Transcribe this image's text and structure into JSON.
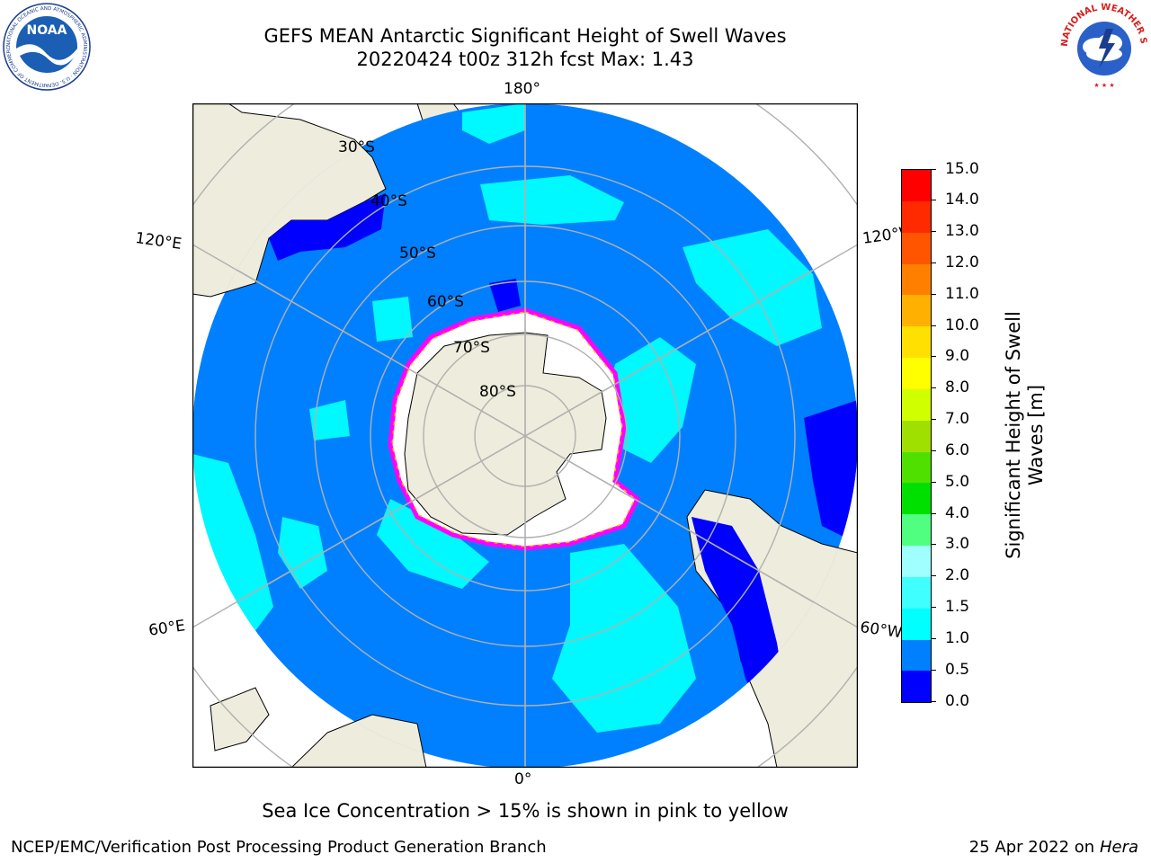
{
  "header": {
    "title_line1": "GEFS MEAN Antarctic Significant Height of Swell Waves",
    "title_line2": "20220424 t00z 312h fcst   Max: 1.43"
  },
  "logos": {
    "noaa_text": "NOAA",
    "noaa_ring_text": "NATIONAL OCEANIC AND ATMOSPHERIC ADMINISTRATION · U.S. DEPARTMENT OF COMMERCE",
    "nws_ring_text": "NATIONAL WEATHER SERVICE"
  },
  "map": {
    "projection": "south-polar-stereographic",
    "latitude_labels": [
      "30°S",
      "40°S",
      "50°S",
      "60°S",
      "70°S",
      "80°S"
    ],
    "longitude_labels": {
      "top": "180°",
      "bottom": "0°",
      "upper_left": "120°E",
      "lower_left": "60°E",
      "upper_right": "120°W",
      "lower_right": "60°W"
    },
    "colors": {
      "land": "#eeecdc",
      "ice_region": "#ffffff",
      "ocean_dominant": "#0080ff",
      "swell_1_5": "#00ffff",
      "swell_0_5": "#0000ff",
      "sea_ice_edge": [
        "#ff00ff",
        "#ffb000"
      ],
      "grid": "#b0b0b0"
    }
  },
  "colorbar": {
    "label": "Significant Height of Swell Waves [m]",
    "label_line1": "Significant Height of Swell",
    "label_line2": "Waves [m]",
    "range": [
      0.0,
      15.0
    ],
    "ticks": [
      "0.0",
      "0.5",
      "1.0",
      "1.5",
      "2.0",
      "3.0",
      "4.0",
      "5.0",
      "6.0",
      "7.0",
      "8.0",
      "9.0",
      "10.0",
      "11.0",
      "12.0",
      "13.0",
      "14.0",
      "15.0"
    ],
    "colors": [
      "#0000ff",
      "#0080ff",
      "#00ffff",
      "#40ffff",
      "#a0ffff",
      "#50ff80",
      "#00e000",
      "#50e000",
      "#a0e000",
      "#d0ff00",
      "#ffff00",
      "#ffe000",
      "#ffb000",
      "#ff8000",
      "#ff5500",
      "#ff2a00",
      "#ff0000"
    ]
  },
  "caption": "Sea Ice Concentration > 15% is shown in pink to yellow",
  "footer": {
    "left": "NCEP/EMC/Verification Post Processing Product Generation Branch",
    "right_prefix": "25 Apr 2022 on ",
    "right_host": "Hera"
  }
}
